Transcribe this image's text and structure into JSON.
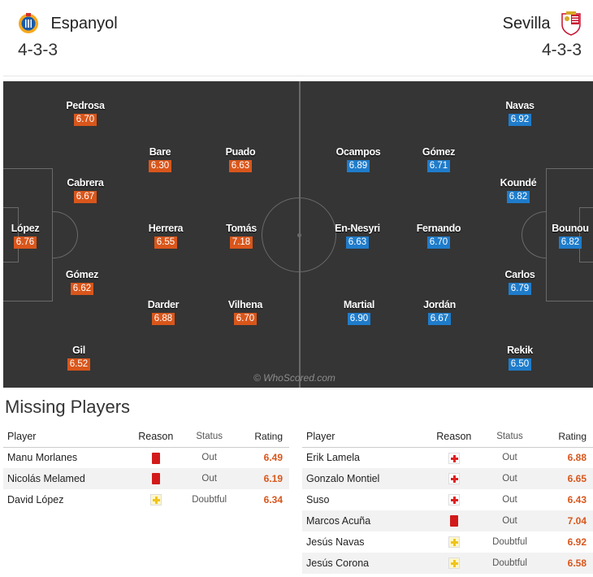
{
  "header": {
    "home": {
      "name": "Espanyol",
      "formation": "4-3-3"
    },
    "away": {
      "name": "Sevilla",
      "formation": "4-3-3"
    }
  },
  "pitch": {
    "watermark": "© WhoScored.com",
    "home_players": [
      {
        "name": "Pedrosa",
        "rating": "6.70"
      },
      {
        "name": "Bare",
        "rating": "6.30"
      },
      {
        "name": "Puado",
        "rating": "6.63"
      },
      {
        "name": "Cabrera",
        "rating": "6.67"
      },
      {
        "name": "López",
        "rating": "6.76"
      },
      {
        "name": "Herrera",
        "rating": "6.55"
      },
      {
        "name": "Tomás",
        "rating": "7.18"
      },
      {
        "name": "Gómez",
        "rating": "6.62"
      },
      {
        "name": "Darder",
        "rating": "6.88"
      },
      {
        "name": "Vilhena",
        "rating": "6.70"
      },
      {
        "name": "Gil",
        "rating": "6.52"
      }
    ],
    "away_players": [
      {
        "name": "Navas",
        "rating": "6.92"
      },
      {
        "name": "Ocampos",
        "rating": "6.89"
      },
      {
        "name": "Gómez",
        "rating": "6.71"
      },
      {
        "name": "Koundé",
        "rating": "6.82"
      },
      {
        "name": "En-Nesyri",
        "rating": "6.63"
      },
      {
        "name": "Fernando",
        "rating": "6.70"
      },
      {
        "name": "Bounou",
        "rating": "6.82"
      },
      {
        "name": "Carlos",
        "rating": "6.79"
      },
      {
        "name": "Martial",
        "rating": "6.90"
      },
      {
        "name": "Jordán",
        "rating": "6.67"
      },
      {
        "name": "Rekik",
        "rating": "6.50"
      }
    ]
  },
  "missing": {
    "title": "Missing Players",
    "headers": {
      "player": "Player",
      "reason": "Reason",
      "status": "Status",
      "rating": "Rating"
    },
    "home": [
      {
        "player": "Manu Morlanes",
        "reason": "red-card",
        "status": "Out",
        "rating": "6.49"
      },
      {
        "player": "Nicolás Melamed",
        "reason": "red-card",
        "status": "Out",
        "rating": "6.19"
      },
      {
        "player": "David López",
        "reason": "doubt-icon",
        "status": "Doubtful",
        "rating": "6.34"
      }
    ],
    "away": [
      {
        "player": "Erik Lamela",
        "reason": "injury-icon",
        "status": "Out",
        "rating": "6.88"
      },
      {
        "player": "Gonzalo Montiel",
        "reason": "injury-icon",
        "status": "Out",
        "rating": "6.65"
      },
      {
        "player": "Suso",
        "reason": "injury-icon",
        "status": "Out",
        "rating": "6.43"
      },
      {
        "player": "Marcos Acuña",
        "reason": "red-card",
        "status": "Out",
        "rating": "7.04"
      },
      {
        "player": "Jesús Navas",
        "reason": "doubt-icon",
        "status": "Doubtful",
        "rating": "6.92"
      },
      {
        "player": "Jesús Corona",
        "reason": "doubt-icon",
        "status": "Doubtful",
        "rating": "6.58"
      }
    ]
  },
  "colors": {
    "home_rating": "#d9561b",
    "away_rating": "#1f7ccb",
    "pitch": "#353535"
  }
}
